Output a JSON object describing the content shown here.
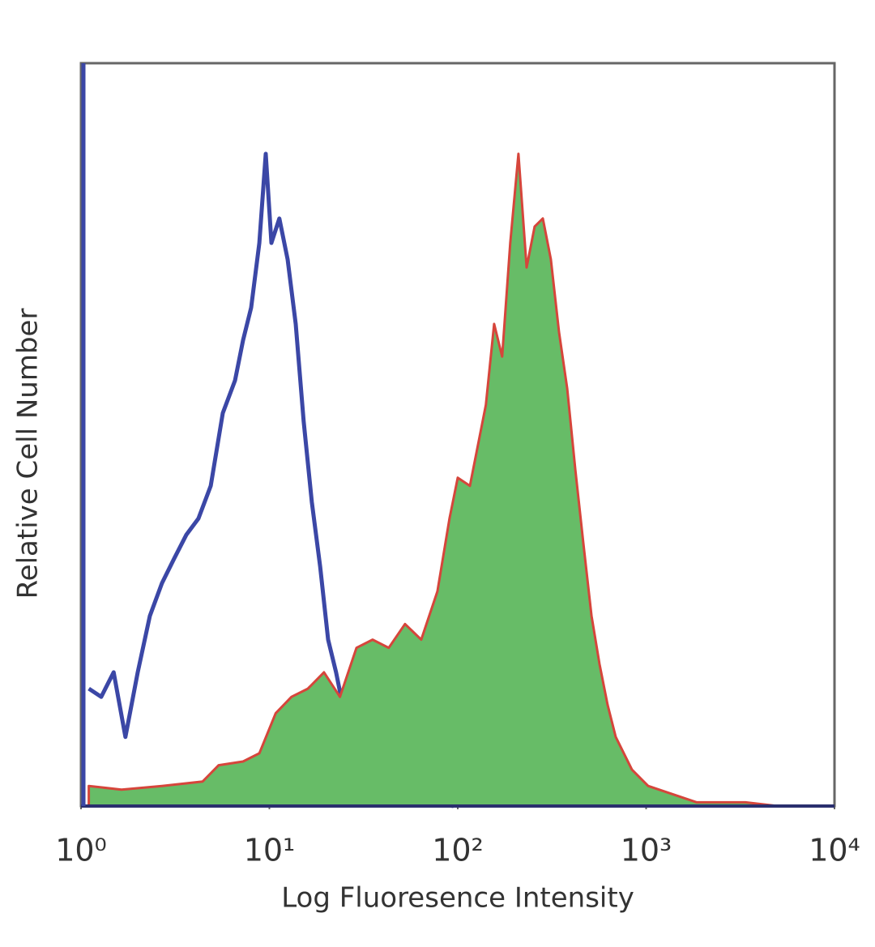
{
  "chart_data": {
    "type": "histogram-overlay",
    "x_label": "Log Fluoresence Intensity",
    "y_label": "Relative Cell Number",
    "xscale": "log",
    "xlim": [
      1,
      10000
    ],
    "ylim": [
      0,
      100
    ],
    "xticks": [
      {
        "value": 1,
        "label": "10⁰"
      },
      {
        "value": 10,
        "label": "10¹"
      },
      {
        "value": 100,
        "label": "10²"
      },
      {
        "value": 1000,
        "label": "10³"
      },
      {
        "value": 10000,
        "label": "10⁴"
      }
    ],
    "series": [
      {
        "color": "#3b47a6",
        "filled": false,
        "x": [
          1.1,
          1.28,
          1.49,
          1.72,
          2.0,
          2.32,
          2.69,
          3.12,
          3.62,
          4.2,
          4.88,
          5.66,
          6.57,
          7.25,
          8.0,
          8.84,
          9.56,
          10.25,
          11.3,
          12.5,
          13.8,
          15.2,
          16.8,
          18.6,
          20.5,
          22.6,
          25.0,
          27.6,
          32.0,
          39.0,
          52.5,
          70.6,
          95
        ],
        "values": [
          15.8,
          14.7,
          18.0,
          9.3,
          18.0,
          25.6,
          30.0,
          33.3,
          36.5,
          38.7,
          43.1,
          52.9,
          57.3,
          62.7,
          67.1,
          75.8,
          87.8,
          75.8,
          79.1,
          73.6,
          64.9,
          51.8,
          40.9,
          32.2,
          22.4,
          18.0,
          12.5,
          8.2,
          3.8,
          2.2,
          1.6,
          0.5,
          0
        ]
      },
      {
        "color": "#d6453b",
        "fill": "#67bc67",
        "filled": true,
        "x": [
          1.1,
          1.64,
          2.69,
          4.42,
          5.38,
          7.25,
          8.84,
          10.8,
          13.1,
          16.0,
          19.5,
          23.7,
          29.0,
          35.3,
          43.0,
          52.5,
          64.0,
          78.0,
          90.4,
          100,
          116,
          141,
          156,
          172,
          190,
          210,
          232,
          256,
          283,
          312,
          345,
          381,
          421,
          464,
          513,
          566,
          625,
          690,
          841,
          1025,
          1380,
          1857,
          3365,
          5000
        ],
        "values": [
          2.7,
          2.2,
          2.7,
          3.3,
          5.5,
          6.0,
          7.1,
          12.5,
          14.7,
          15.8,
          18.0,
          14.7,
          21.3,
          22.4,
          21.3,
          24.5,
          22.4,
          28.9,
          38.7,
          44.2,
          43.1,
          54.0,
          64.9,
          60.5,
          75.8,
          87.8,
          72.5,
          78.0,
          79.1,
          73.6,
          63.8,
          56.2,
          45.3,
          35.4,
          25.6,
          19.1,
          13.6,
          9.3,
          4.9,
          2.7,
          1.6,
          0.5,
          0.5,
          0
        ]
      }
    ]
  }
}
